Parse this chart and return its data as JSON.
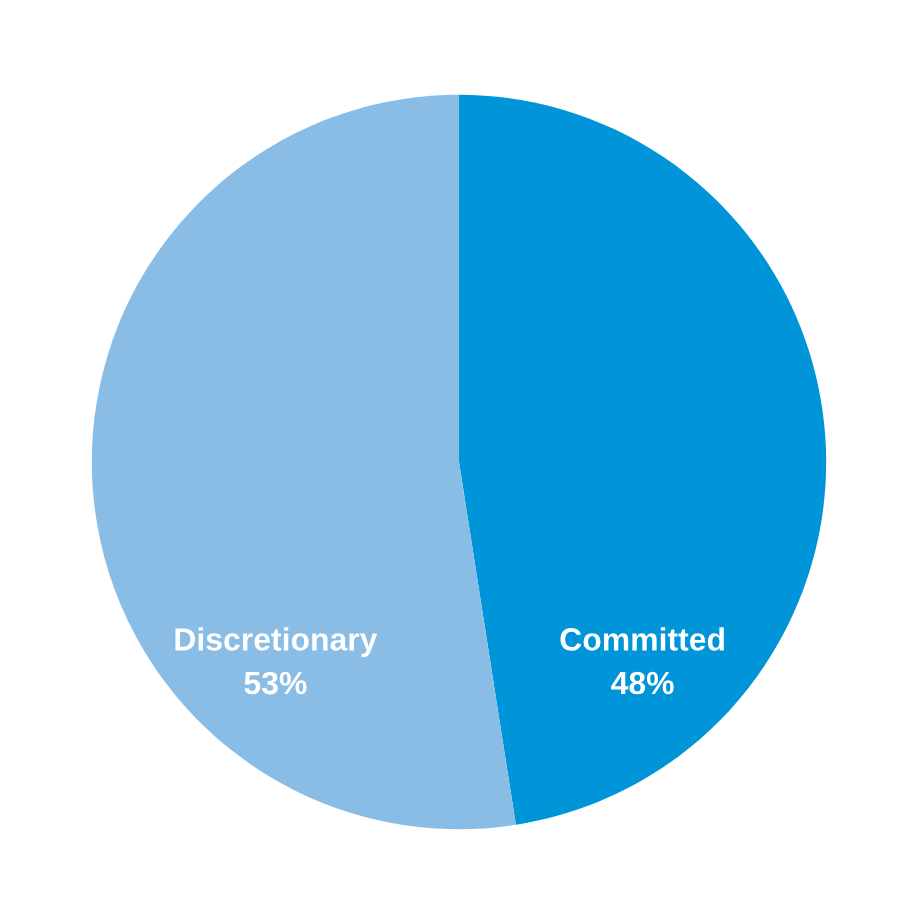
{
  "chart_data": {
    "type": "pie",
    "categories": [
      "Committed",
      "Discretionary"
    ],
    "values": [
      48,
      53
    ],
    "value_labels": [
      "48%",
      "53%"
    ],
    "colors": [
      "#0094d8",
      "#8abde6"
    ]
  }
}
